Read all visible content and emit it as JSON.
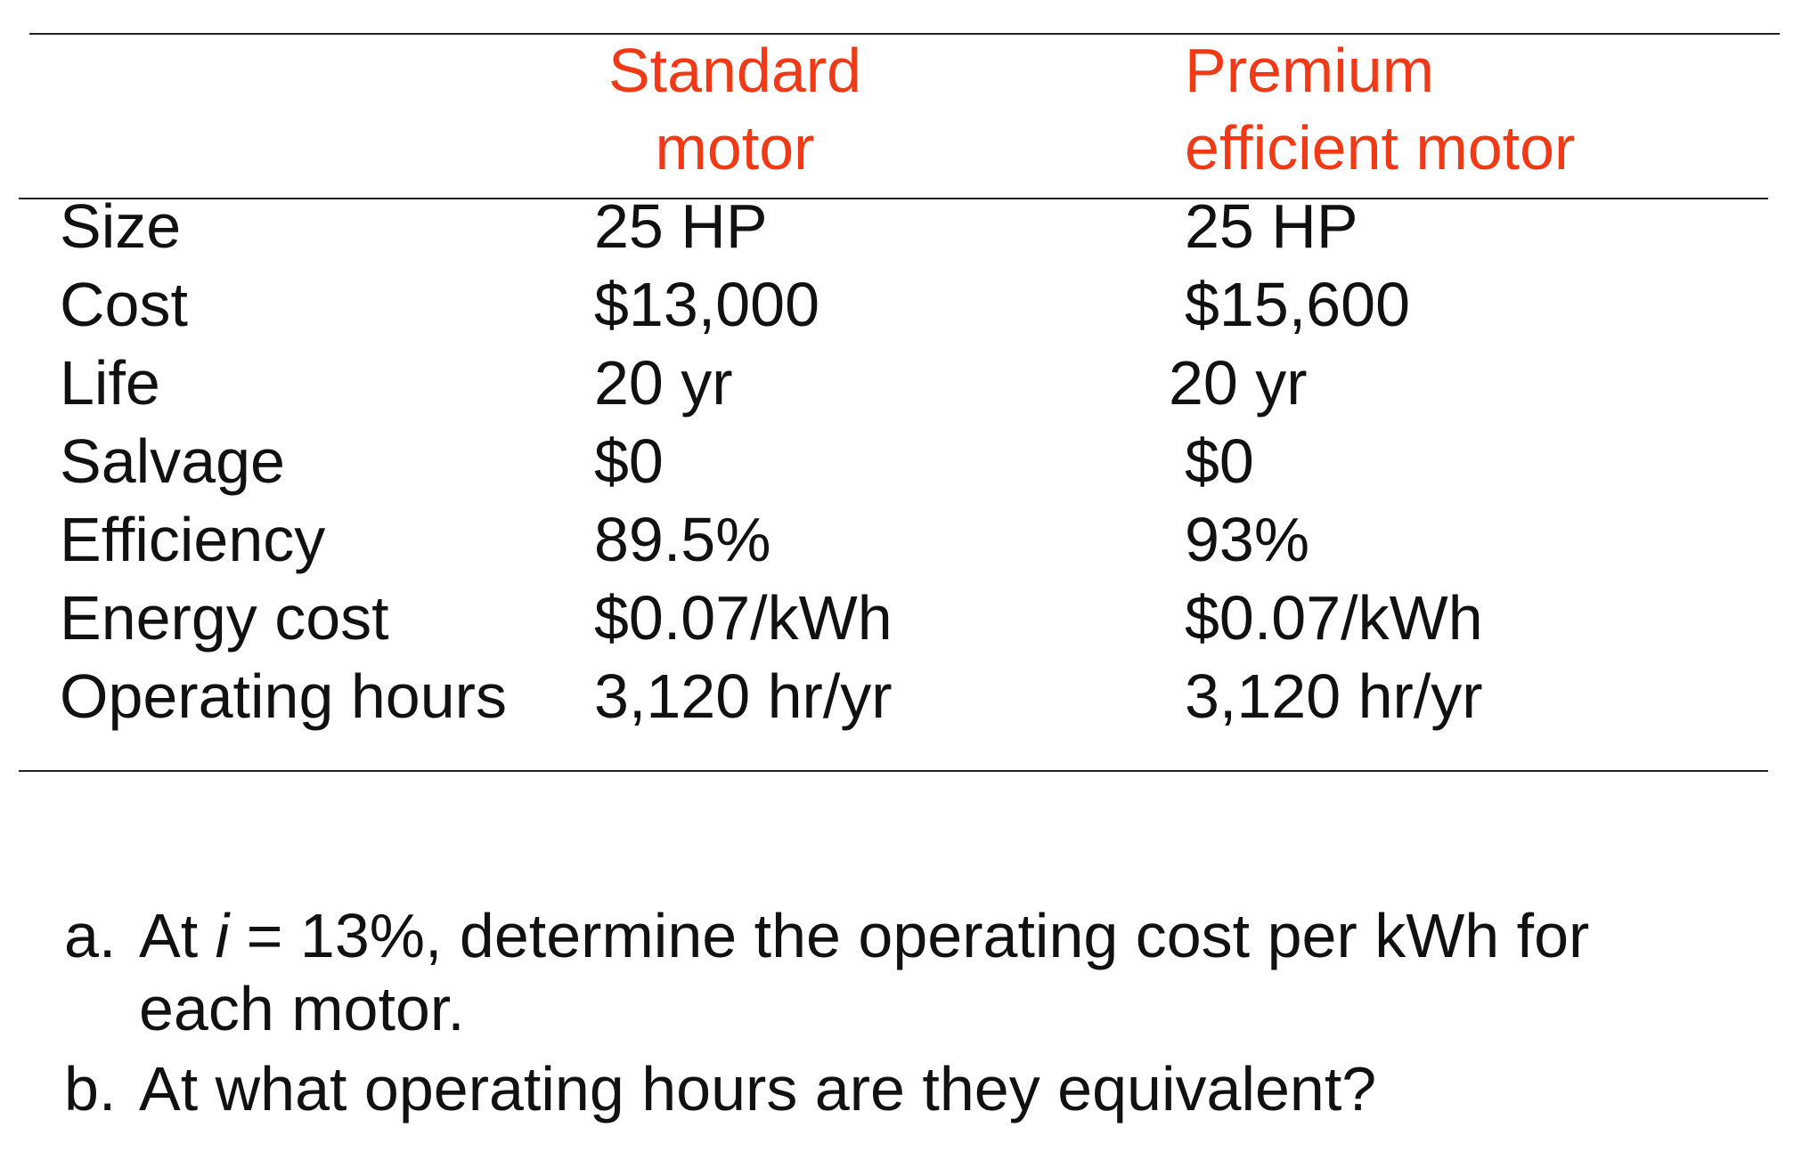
{
  "table": {
    "headers": {
      "standard": [
        "Standard",
        "motor"
      ],
      "premium": [
        "Premium",
        "efficient motor"
      ]
    },
    "rows": [
      {
        "label": "Size",
        "standard": "25 HP",
        "premium": "25 HP"
      },
      {
        "label": "Cost",
        "standard": "$13,000",
        "premium": "$15,600"
      },
      {
        "label": "Life",
        "standard": "20 yr",
        "premium": "20 yr"
      },
      {
        "label": "Salvage",
        "standard": "$0",
        "premium": "$0"
      },
      {
        "label": "Efficiency",
        "standard": "89.5%",
        "premium": "93%"
      },
      {
        "label": "Energy cost",
        "standard": "$0.07/kWh",
        "premium": "$0.07/kWh"
      },
      {
        "label": "Operating hours",
        "standard": "3,120 hr/yr",
        "premium": "3,120 hr/yr"
      }
    ]
  },
  "questions": {
    "a": {
      "marker": "a.",
      "prefix": "At ",
      "variable": "i",
      "line1_rest": " = 13%, determine the operating cost per kWh for",
      "line2": "each motor."
    },
    "b": {
      "marker": "b.",
      "text": "At what operating hours are they equivalent?"
    }
  },
  "colors": {
    "header": "#f03a17",
    "text": "#111111",
    "rule": "#222222"
  }
}
